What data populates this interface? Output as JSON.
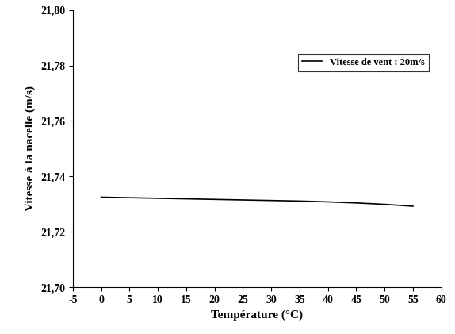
{
  "chart_data": {
    "type": "line",
    "x_label": "Température (°C)",
    "y_label": "Vitesse à la nacelle (m/s)",
    "x": [
      0,
      5,
      10,
      15,
      20,
      25,
      30,
      35,
      40,
      45,
      50,
      55
    ],
    "series": [
      {
        "name": "Vitesse de vent : 20m/s",
        "color": "#000000",
        "line_style": "solid",
        "values": [
          21.7325,
          21.7323,
          21.7321,
          21.7319,
          21.7317,
          21.7315,
          21.7313,
          21.7311,
          21.7308,
          21.7304,
          21.7299,
          21.7292
        ]
      }
    ],
    "xlim": [
      -5,
      60
    ],
    "xticks": [
      -5,
      0,
      5,
      10,
      15,
      20,
      25,
      30,
      35,
      40,
      45,
      50,
      55,
      60
    ],
    "ylim": [
      21.7,
      21.8
    ],
    "yticks": [
      {
        "value": 21.7,
        "label": "21,70"
      },
      {
        "value": 21.72,
        "label": "21,72"
      },
      {
        "value": 21.74,
        "label": "21,74"
      },
      {
        "value": 21.76,
        "label": "21,76"
      },
      {
        "value": 21.78,
        "label": "21,78"
      },
      {
        "value": 21.8,
        "label": "21,80"
      }
    ],
    "grid": false,
    "legend": "upper right"
  }
}
